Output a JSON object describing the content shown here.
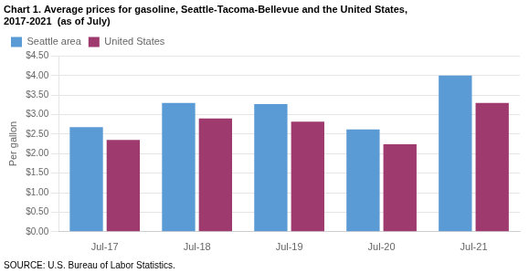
{
  "chart_data": {
    "type": "bar",
    "title": [
      "Chart 1. Average prices for gasoline, Seattle-Tacoma-Bellevue and the United States,",
      "2017-2021  (as of July)"
    ],
    "ylabel": "Per gallon",
    "source": "SOURCE: U.S. Bureau of Labor Statistics.",
    "categories": [
      "Jul-17",
      "Jul-18",
      "Jul-19",
      "Jul-20",
      "Jul-21"
    ],
    "series": [
      {
        "name": "Seattle area",
        "color": "#5B9BD5",
        "values": [
          2.68,
          3.3,
          3.27,
          2.62,
          4.0
        ]
      },
      {
        "name": "United States",
        "color": "#9E3A6E",
        "values": [
          2.35,
          2.9,
          2.82,
          2.24,
          3.3
        ]
      }
    ],
    "ylim": [
      0,
      4.5
    ],
    "yticks": [
      {
        "value": 0.0,
        "label": "$0.00"
      },
      {
        "value": 0.5,
        "label": "$0.50"
      },
      {
        "value": 1.0,
        "label": "$1.00"
      },
      {
        "value": 1.5,
        "label": "$1.50"
      },
      {
        "value": 2.0,
        "label": "$2.00"
      },
      {
        "value": 2.5,
        "label": "$2.50"
      },
      {
        "value": 3.0,
        "label": "$3.00"
      },
      {
        "value": 3.5,
        "label": "$3.50"
      },
      {
        "value": 4.0,
        "label": "$4.00"
      },
      {
        "value": 4.5,
        "label": "$4.50"
      }
    ],
    "grid": true,
    "legend": "upper left"
  }
}
